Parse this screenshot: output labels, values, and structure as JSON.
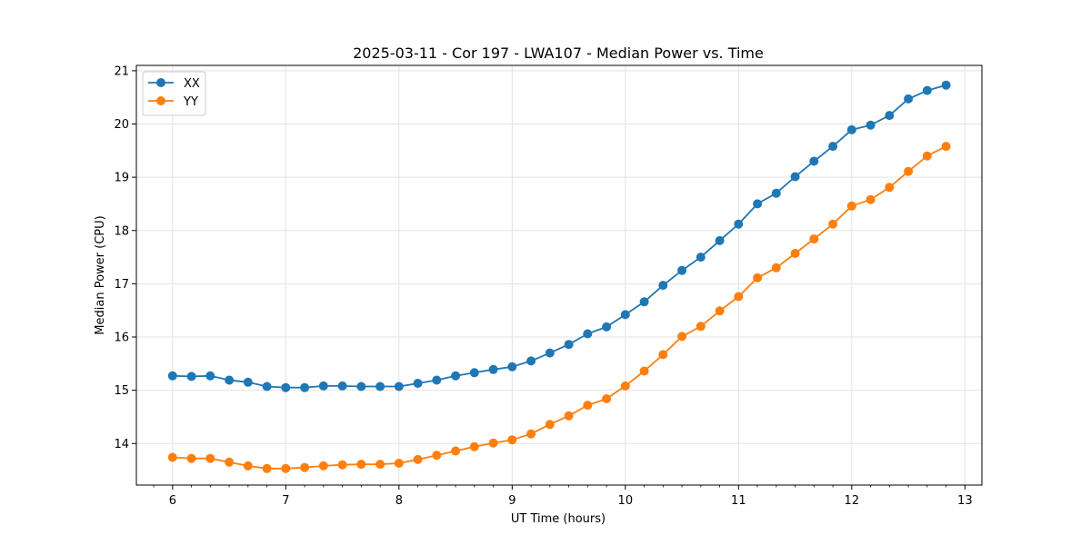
{
  "chart_data": {
    "type": "line",
    "title": "2025-03-11 - Cor 197 - LWA107 - Median Power vs. Time",
    "xlabel": "UT Time (hours)",
    "ylabel": "Median Power (CPU)",
    "xlim": [
      5.68,
      13.15
    ],
    "ylim": [
      13.22,
      21.1
    ],
    "xticks": [
      6,
      7,
      8,
      9,
      10,
      11,
      12,
      13
    ],
    "yticks": [
      14,
      15,
      16,
      17,
      18,
      19,
      20,
      21
    ],
    "grid": true,
    "legend_position": "upper-left",
    "x": [
      6.0,
      6.1667,
      6.3333,
      6.5,
      6.6667,
      6.8333,
      7.0,
      7.1667,
      7.3333,
      7.5,
      7.6667,
      7.8333,
      8.0,
      8.1667,
      8.3333,
      8.5,
      8.6667,
      8.8333,
      9.0,
      9.1667,
      9.3333,
      9.5,
      9.6667,
      9.8333,
      10.0,
      10.1667,
      10.3333,
      10.5,
      10.6667,
      10.8333,
      11.0,
      11.1667,
      11.3333,
      11.5,
      11.6667,
      11.8333,
      12.0,
      12.1667,
      12.3333,
      12.5,
      12.6667,
      12.8333
    ],
    "series": [
      {
        "name": "XX",
        "color": "#1f77b4",
        "values": [
          15.27,
          15.26,
          15.27,
          15.19,
          15.15,
          15.07,
          15.05,
          15.05,
          15.08,
          15.08,
          15.07,
          15.07,
          15.07,
          15.13,
          15.19,
          15.27,
          15.33,
          15.39,
          15.44,
          15.55,
          15.7,
          15.86,
          16.06,
          16.19,
          16.42,
          16.66,
          16.97,
          17.25,
          17.5,
          17.81,
          18.12,
          18.5,
          18.7,
          19.01,
          19.3,
          19.58,
          19.89,
          19.98,
          20.16,
          20.47,
          20.63,
          20.73
        ]
      },
      {
        "name": "YY",
        "color": "#ff7f0e",
        "values": [
          13.74,
          13.72,
          13.72,
          13.65,
          13.58,
          13.53,
          13.53,
          13.55,
          13.58,
          13.6,
          13.61,
          13.61,
          13.63,
          13.7,
          13.78,
          13.86,
          13.94,
          14.01,
          14.07,
          14.18,
          14.36,
          14.52,
          14.72,
          14.84,
          15.08,
          15.36,
          15.67,
          16.01,
          16.2,
          16.49,
          16.76,
          17.11,
          17.3,
          17.57,
          17.84,
          18.12,
          18.46,
          18.58,
          18.81,
          19.11,
          19.4,
          19.58
        ]
      }
    ]
  }
}
